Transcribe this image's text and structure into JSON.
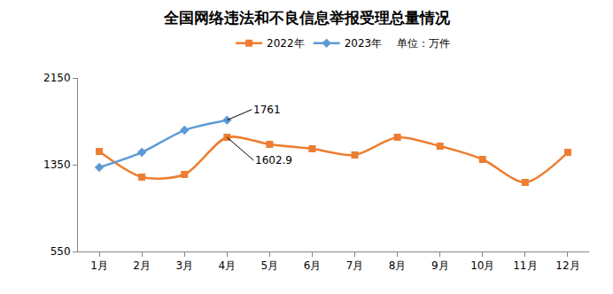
{
  "chart_data": {
    "type": "line",
    "title": "全国网络违法和不良信息举报受理总量情况",
    "unit": "单位：万件",
    "categories": [
      "1月",
      "2月",
      "3月",
      "4月",
      "5月",
      "6月",
      "7月",
      "8月",
      "9月",
      "10月",
      "11月",
      "12月"
    ],
    "series": [
      {
        "name": "2022年",
        "color": "#ED7D31",
        "marker": "square",
        "line_style": "smooth",
        "values": [
          1472,
          1236,
          1260,
          1602.9,
          1538,
          1497,
          1440,
          1603,
          1521,
          1399,
          1187,
          1464
        ]
      },
      {
        "name": "2023年",
        "color": "#5B9BD5",
        "marker": "diamond",
        "line_style": "smooth",
        "values": [
          1326,
          1464,
          1668,
          1761,
          null,
          null,
          null,
          null,
          null,
          null,
          null,
          null
        ]
      }
    ],
    "annotations": [
      {
        "series": "2023年",
        "category": "4月",
        "text": "1761"
      },
      {
        "series": "2022年",
        "category": "4月",
        "text": "1602.9"
      }
    ],
    "ylim": [
      550,
      2150
    ],
    "yticks": [
      550,
      1350,
      2150
    ],
    "grid": false,
    "legend": "top"
  }
}
